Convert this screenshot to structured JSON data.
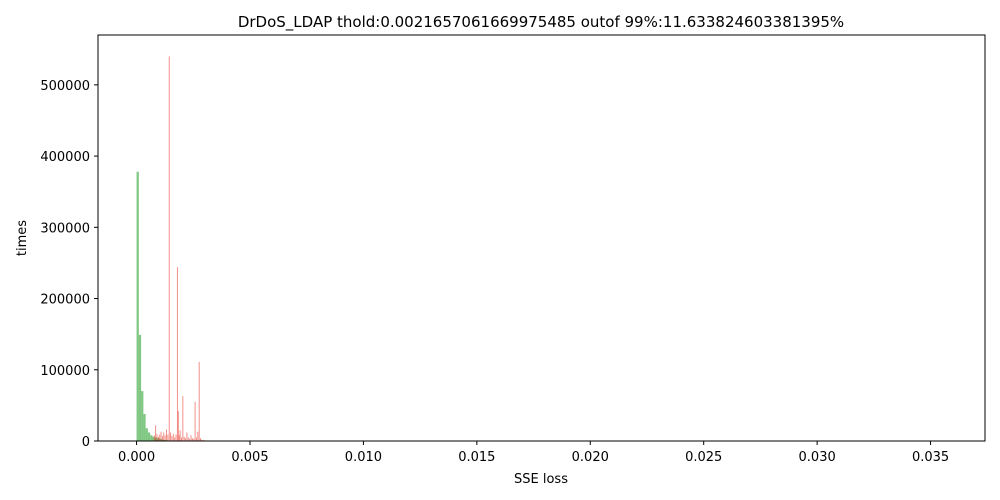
{
  "chart_data": {
    "type": "bar",
    "title": "DrDoS_LDAP thold:0.0021657061669975485 outof 99%:11.633824603381395%",
    "xlabel": "SSE loss",
    "ylabel": "times",
    "xlim": [
      -0.0017,
      0.0374
    ],
    "ylim": [
      0,
      570000
    ],
    "xticks": [
      0.0,
      0.005,
      0.01,
      0.015,
      0.02,
      0.025,
      0.03,
      0.035
    ],
    "xtick_labels": [
      "0.000",
      "0.005",
      "0.010",
      "0.015",
      "0.020",
      "0.025",
      "0.030",
      "0.035"
    ],
    "yticks": [
      0,
      100000,
      200000,
      300000,
      400000,
      500000
    ],
    "ytick_labels": [
      "0",
      "100000",
      "200000",
      "300000",
      "400000",
      "500000"
    ],
    "grid": false,
    "series": [
      {
        "color": "#4caf50",
        "opacity": 0.7,
        "bin_width": 0.0001,
        "bins": [
          {
            "x": 0.0,
            "value": 378000
          },
          {
            "x": 0.0001,
            "value": 149000
          },
          {
            "x": 0.0002,
            "value": 70000
          },
          {
            "x": 0.0003,
            "value": 38000
          },
          {
            "x": 0.0004,
            "value": 18000
          },
          {
            "x": 0.0005,
            "value": 12000
          },
          {
            "x": 0.0006,
            "value": 8000
          },
          {
            "x": 0.0007,
            "value": 6000
          },
          {
            "x": 0.0008,
            "value": 5000
          },
          {
            "x": 0.0009,
            "value": 4000
          },
          {
            "x": 0.001,
            "value": 3000
          },
          {
            "x": 0.0011,
            "value": 2000
          },
          {
            "x": 0.0012,
            "value": 1500
          },
          {
            "x": 0.0013,
            "value": 1000
          },
          {
            "x": 0.0014,
            "value": 700
          },
          {
            "x": 0.0015,
            "value": 500
          }
        ]
      },
      {
        "color": "#e8352a",
        "opacity": 0.6,
        "bin_width": 4e-05,
        "bins": [
          {
            "x": 0.00076,
            "value": 8000
          },
          {
            "x": 0.00082,
            "value": 22000
          },
          {
            "x": 0.00088,
            "value": 10000
          },
          {
            "x": 0.00094,
            "value": 6000
          },
          {
            "x": 0.001,
            "value": 9000
          },
          {
            "x": 0.00106,
            "value": 13000
          },
          {
            "x": 0.00112,
            "value": 7000
          },
          {
            "x": 0.00118,
            "value": 12000
          },
          {
            "x": 0.00124,
            "value": 8000
          },
          {
            "x": 0.0013,
            "value": 16000
          },
          {
            "x": 0.00136,
            "value": 9000
          },
          {
            "x": 0.00142,
            "value": 540000
          },
          {
            "x": 0.00148,
            "value": 12000
          },
          {
            "x": 0.00154,
            "value": 7000
          },
          {
            "x": 0.0016,
            "value": 10000
          },
          {
            "x": 0.00166,
            "value": 5000
          },
          {
            "x": 0.00172,
            "value": 9000
          },
          {
            "x": 0.00178,
            "value": 244000
          },
          {
            "x": 0.00182,
            "value": 42000
          },
          {
            "x": 0.00186,
            "value": 8000
          },
          {
            "x": 0.0019,
            "value": 15000
          },
          {
            "x": 0.00196,
            "value": 5000
          },
          {
            "x": 0.00202,
            "value": 63000
          },
          {
            "x": 0.00208,
            "value": 6000
          },
          {
            "x": 0.00214,
            "value": 4000
          },
          {
            "x": 0.0022,
            "value": 12000
          },
          {
            "x": 0.00226,
            "value": 5000
          },
          {
            "x": 0.00232,
            "value": 3000
          },
          {
            "x": 0.00238,
            "value": 8000
          },
          {
            "x": 0.00244,
            "value": 4000
          },
          {
            "x": 0.0025,
            "value": 3000
          },
          {
            "x": 0.00256,
            "value": 55000
          },
          {
            "x": 0.00262,
            "value": 5000
          },
          {
            "x": 0.00268,
            "value": 13000
          },
          {
            "x": 0.00274,
            "value": 111000
          },
          {
            "x": 0.0028,
            "value": 4000
          },
          {
            "x": 0.00286,
            "value": 2000
          },
          {
            "x": 0.00292,
            "value": 1500
          },
          {
            "x": 0.00298,
            "value": 1000
          },
          {
            "x": 0.00304,
            "value": 800
          },
          {
            "x": 0.0031,
            "value": 500
          }
        ]
      }
    ]
  }
}
